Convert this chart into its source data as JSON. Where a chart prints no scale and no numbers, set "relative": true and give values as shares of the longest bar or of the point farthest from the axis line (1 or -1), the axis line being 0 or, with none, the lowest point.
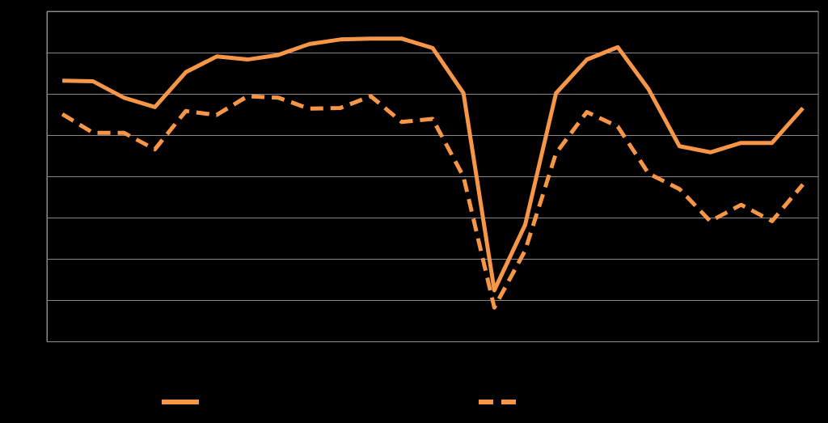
{
  "chart_data": {
    "type": "line",
    "relative": true,
    "grid": "y",
    "marker": "none",
    "categories": [
      null,
      null,
      null,
      null,
      null,
      null,
      null,
      null,
      null,
      null,
      null,
      null,
      null,
      null,
      null,
      null,
      null,
      null,
      null,
      null,
      null,
      null,
      null,
      null,
      null
    ],
    "series": [
      {
        "color": "#f79646",
        "line_style": "solid",
        "values": [
          0.861,
          0.859,
          0.805,
          0.774,
          0.889,
          0.941,
          0.931,
          0.946,
          0.982,
          0.997,
          1,
          1,
          0.969,
          0.82,
          0.17,
          0.386,
          0.82,
          0.931,
          0.972,
          0.833,
          0.645,
          0.625,
          0.656,
          0.656,
          0.771
        ]
      },
      {
        "color": "#f79646",
        "line_style": "dashed",
        "values": [
          0.751,
          0.689,
          0.689,
          0.635,
          0.761,
          0.748,
          0.81,
          0.805,
          0.769,
          0.771,
          0.81,
          0.725,
          0.735,
          0.545,
          0.113,
          0.301,
          0.622,
          0.758,
          0.71,
          0.555,
          0.504,
          0.398,
          0.452,
          0.398,
          0.519
        ]
      }
    ]
  }
}
